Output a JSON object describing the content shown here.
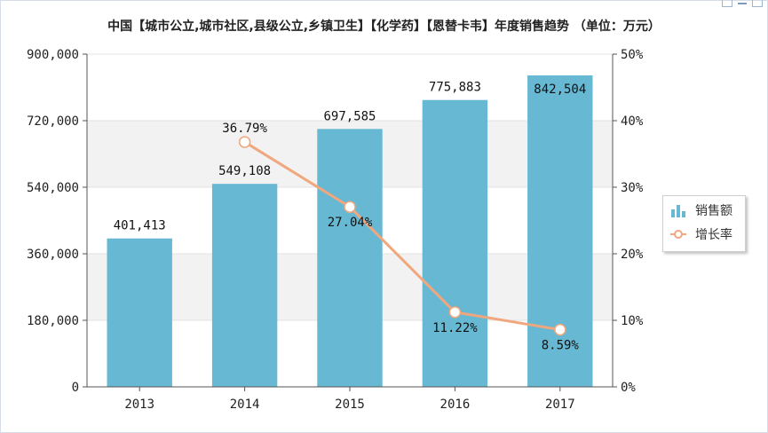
{
  "chart_data": {
    "type": "bar",
    "title": "中国【城市公立,城市社区,县级公立,乡镇卫生】【化学药】【恩替卡韦】年度销售趋势 （单位：万元）",
    "categories": [
      "2013",
      "2014",
      "2015",
      "2016",
      "2017"
    ],
    "series": [
      {
        "name": "销售额",
        "type": "bar",
        "axis": "left",
        "values": [
          401413,
          549108,
          697585,
          775883,
          842504
        ],
        "labels": [
          "401,413",
          "549,108",
          "697,585",
          "775,883",
          "842,504"
        ]
      },
      {
        "name": "增长率",
        "type": "line",
        "axis": "right",
        "values": [
          null,
          36.79,
          27.04,
          11.22,
          8.59
        ],
        "labels": [
          "",
          "36.79%",
          "27.04%",
          "11.22%",
          "8.59%"
        ]
      }
    ],
    "left_axis": {
      "min": 0,
      "max": 900000,
      "ticks": [
        "0",
        "180,000",
        "360,000",
        "540,000",
        "720,000",
        "900,000"
      ]
    },
    "right_axis": {
      "min": 0,
      "max": 50,
      "ticks": [
        "0%",
        "10%",
        "20%",
        "30%",
        "40%",
        "50%"
      ]
    },
    "legend_position": "right",
    "colors": {
      "bar": "#67b8d3",
      "line": "#f1a77d",
      "band": "#f2f2f2"
    }
  }
}
